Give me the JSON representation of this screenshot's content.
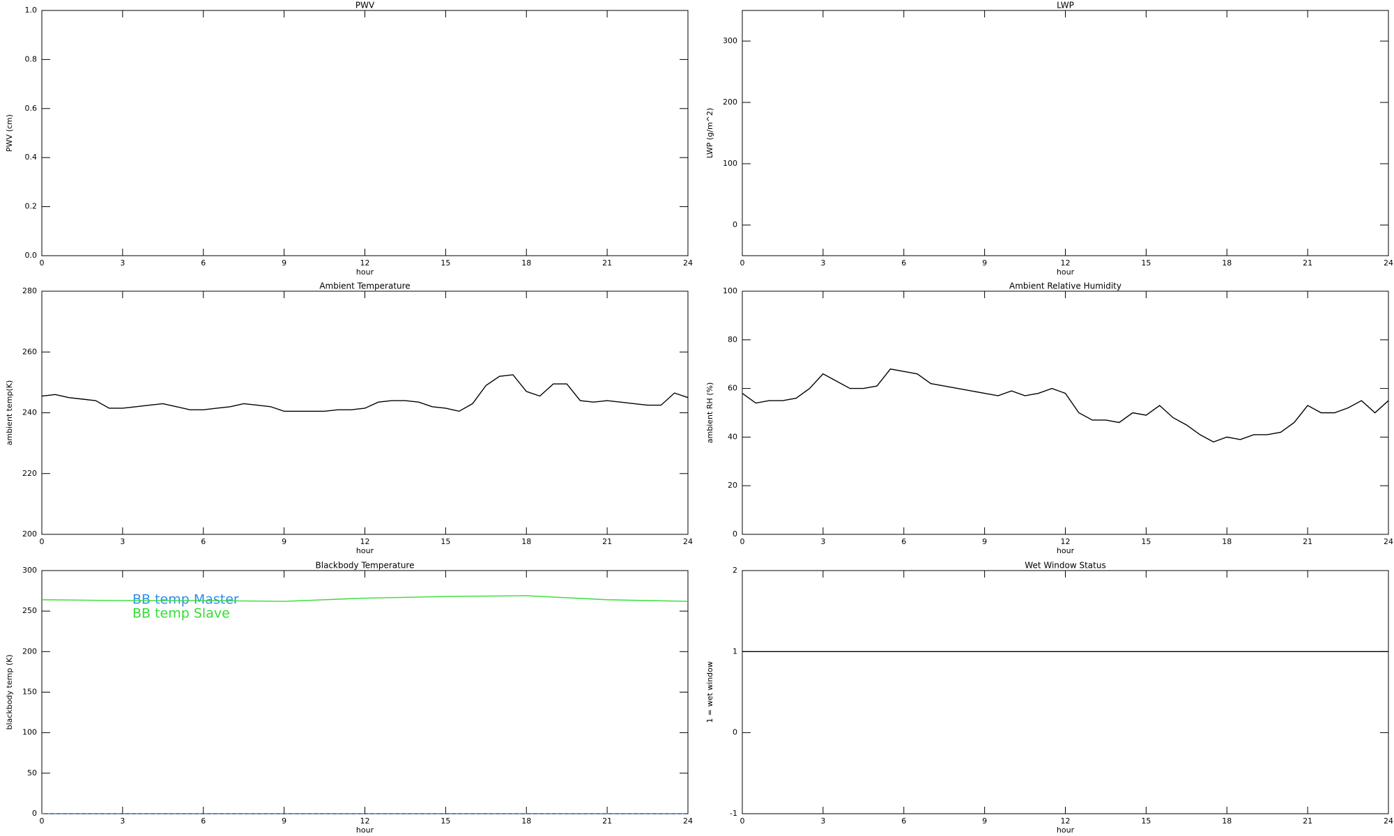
{
  "chart_data": [
    {
      "type": "line",
      "title": "PWV",
      "xlabel": "hour",
      "ylabel": "PWV (cm)",
      "xlim": [
        0,
        24
      ],
      "xticks": [
        0,
        3,
        6,
        9,
        12,
        15,
        18,
        21,
        24
      ],
      "ylim": [
        0,
        1
      ],
      "yticks": [
        {
          "value": 0,
          "label": "0.0"
        },
        0.2,
        0.4,
        0.6,
        0.8,
        {
          "value": 1,
          "label": "1.0"
        }
      ]
    },
    {
      "type": "line",
      "title": "LWP",
      "xlabel": "hour",
      "ylabel": "LWP (g/m^2)",
      "xlim": [
        0,
        24
      ],
      "xticks": [
        0,
        3,
        6,
        9,
        12,
        15,
        18,
        21,
        24
      ],
      "ylim": [
        -50,
        350
      ],
      "yticks": [
        0,
        100,
        200,
        300
      ]
    },
    {
      "type": "line",
      "title": "Ambient Temperature",
      "xlabel": "hour",
      "ylabel": "ambient temp(K)",
      "xlim": [
        0,
        24
      ],
      "xticks": [
        0,
        3,
        6,
        9,
        12,
        15,
        18,
        21,
        24
      ],
      "ylim": [
        200,
        280
      ],
      "yticks": [
        200,
        220,
        240,
        260,
        280
      ],
      "x": [
        0,
        0.5,
        1,
        1.5,
        2,
        2.5,
        3,
        3.5,
        4,
        4.5,
        5,
        5.5,
        6,
        6.5,
        7,
        7.5,
        8,
        8.5,
        9,
        9.5,
        10,
        10.5,
        11,
        11.5,
        12,
        12.5,
        13,
        13.5,
        14,
        14.5,
        15,
        15.5,
        16,
        16.5,
        17,
        17.5,
        18,
        18.5,
        19,
        19.5,
        20,
        20.5,
        21,
        21.5,
        22,
        22.5,
        23,
        23.5,
        24
      ],
      "series": [
        {
          "color": "#000000",
          "values": [
            245.5,
            246,
            245,
            244.5,
            244,
            241.5,
            241.5,
            242,
            242.5,
            243,
            242,
            241,
            241,
            241.5,
            242,
            243,
            242.5,
            242,
            240.5,
            240.5,
            240.5,
            240.5,
            241,
            241,
            241.5,
            243.5,
            244,
            244,
            243.5,
            242,
            241.5,
            240.5,
            243,
            249,
            252,
            252.5,
            247,
            245.5,
            249.5,
            249.5,
            244,
            243.5,
            244,
            243.5,
            243,
            242.5,
            242.5,
            246.5,
            245
          ]
        }
      ]
    },
    {
      "type": "line",
      "title": "Ambient Relative Humidity",
      "xlabel": "hour",
      "ylabel": "ambient RH (%)",
      "xlim": [
        0,
        24
      ],
      "xticks": [
        0,
        3,
        6,
        9,
        12,
        15,
        18,
        21,
        24
      ],
      "ylim": [
        0,
        100
      ],
      "yticks": [
        0,
        20,
        40,
        60,
        80,
        100
      ],
      "x": [
        0,
        0.5,
        1,
        1.5,
        2,
        2.5,
        3,
        3.5,
        4,
        4.5,
        5,
        5.5,
        6,
        6.5,
        7,
        7.5,
        8,
        8.5,
        9,
        9.5,
        10,
        10.5,
        11,
        11.5,
        12,
        12.5,
        13,
        13.5,
        14,
        14.5,
        15,
        15.5,
        16,
        16.5,
        17,
        17.5,
        18,
        18.5,
        19,
        19.5,
        20,
        20.5,
        21,
        21.5,
        22,
        22.5,
        23,
        23.5,
        24
      ],
      "series": [
        {
          "color": "#000000",
          "values": [
            58,
            54,
            55,
            55,
            56,
            60,
            66,
            63,
            60,
            60,
            61,
            68,
            67,
            66,
            62,
            61,
            60,
            59,
            58,
            57,
            59,
            57,
            58,
            60,
            58,
            50,
            47,
            47,
            46,
            50,
            49,
            53,
            48,
            45,
            41,
            38,
            40,
            39,
            41,
            41,
            42,
            46,
            53,
            50,
            50,
            52,
            55,
            50,
            55
          ]
        }
      ]
    },
    {
      "type": "line",
      "title": "Blackbody Temperature",
      "xlabel": "hour",
      "ylabel": "blackbody temp (K)",
      "xlim": [
        0,
        24
      ],
      "xticks": [
        0,
        3,
        6,
        9,
        12,
        15,
        18,
        21,
        24
      ],
      "ylim": [
        0,
        300
      ],
      "yticks": [
        0,
        50,
        100,
        150,
        200,
        250,
        300
      ],
      "x": [
        0,
        3,
        6,
        9,
        12,
        15,
        18,
        21,
        24
      ],
      "series": [
        {
          "name": "BB temp Master",
          "color": "#2e8ef0",
          "dashed": true,
          "values": [
            0,
            0,
            0,
            0,
            0,
            0,
            0,
            0,
            0
          ]
        },
        {
          "name": "BB temp Slave",
          "color": "#33dd33",
          "values": [
            264,
            263,
            263,
            262,
            266,
            268,
            269,
            264,
            262
          ]
        }
      ]
    },
    {
      "type": "line",
      "title": "Wet Window Status",
      "xlabel": "hour",
      "ylabel": "1 = wet window",
      "xlim": [
        0,
        24
      ],
      "xticks": [
        0,
        3,
        6,
        9,
        12,
        15,
        18,
        21,
        24
      ],
      "ylim": [
        -1,
        2
      ],
      "yticks": [
        -1,
        0,
        1,
        2
      ],
      "x": [
        0,
        24
      ],
      "series": [
        {
          "color": "#000000",
          "values": [
            1,
            1
          ]
        }
      ]
    }
  ]
}
